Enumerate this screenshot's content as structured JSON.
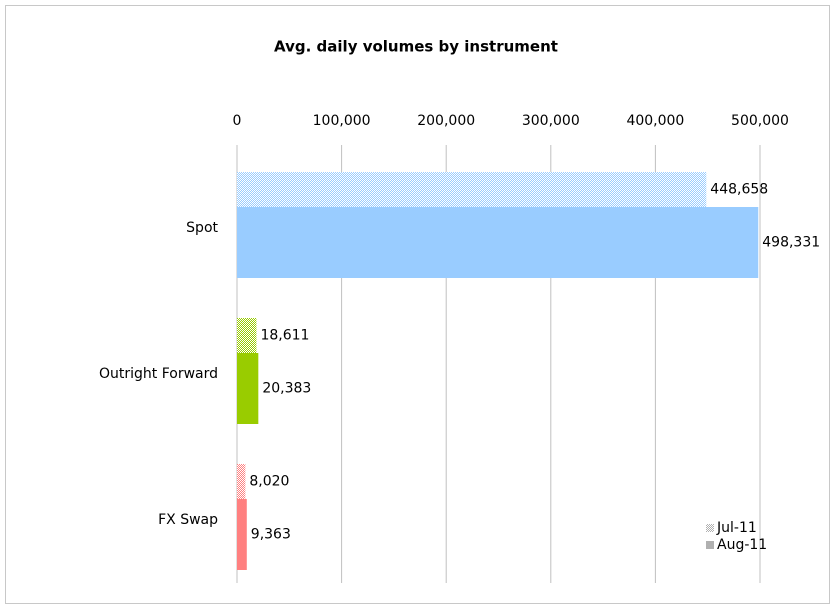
{
  "chart_data": {
    "type": "bar",
    "orientation": "horizontal",
    "title": "Avg. daily volumes by instrument",
    "categories": [
      "Spot",
      "Outright Forward",
      "FX Swap"
    ],
    "category_colors": [
      "#99ccff",
      "#99cc00",
      "#ff8080"
    ],
    "series": [
      {
        "name": "Jul-11",
        "color": "#b0b0b0",
        "pattern": "hatched",
        "label_color": "#c0c0c0",
        "values": [
          448658,
          18611,
          8020
        ],
        "value_labels": [
          "448,658",
          "18,611",
          "8,020"
        ]
      },
      {
        "name": "Aug-11",
        "color": "#b0b0b0",
        "pattern": "solid",
        "label_color": "#808080",
        "values": [
          498331,
          20383,
          9363
        ],
        "value_labels": [
          "498,331",
          "20,383",
          "9,363"
        ]
      }
    ],
    "xlim": [
      0,
      500000
    ],
    "xticks": [
      0,
      {
        "value": 100000,
        "label": "100,000"
      },
      {
        "value": 200000,
        "label": "200,000"
      },
      {
        "value": 300000,
        "label": "300,000"
      },
      {
        "value": 400000,
        "label": "400,000"
      },
      {
        "value": 500000,
        "label": "500,000"
      }
    ],
    "grid": true,
    "legend": "bottom-right"
  }
}
